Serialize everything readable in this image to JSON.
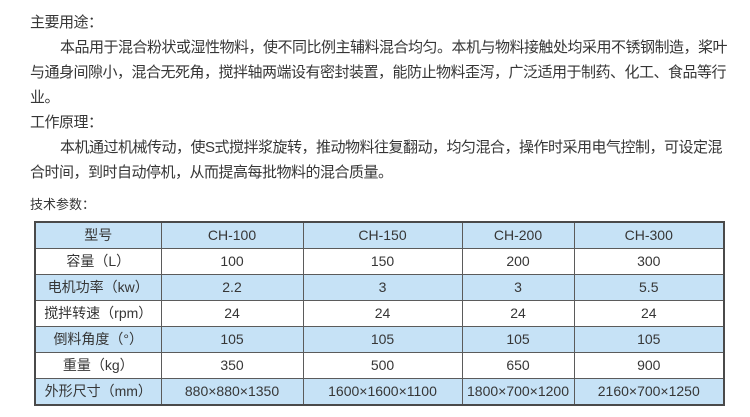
{
  "page": {
    "background": "#ffffff",
    "text_color": "#363636"
  },
  "sections": [
    {
      "heading": "主要用途：",
      "body": "本品用于混合粉状或湿性物料，使不同比例主辅料混合均匀。本机与物料接触处均采用不锈钢制造，桨叶与通身间隙小，混合无死角，搅拌轴两端设有密封装置，能防止物料歪泻，广泛适用于制药、化工、食品等行业。"
    },
    {
      "heading": "工作原理：",
      "body": "本机通过机械传动，使S式搅拌浆旋转，推动物料往复翻动，均匀混合，操作时采用电气控制，可设定混合时间，到时自动停机，从而提高每批物料的混合质量。"
    }
  ],
  "specs_label": "技术参数：",
  "table": {
    "colors": {
      "row_blue": "#c6e2f6",
      "row_white": "#ffffff",
      "border_inner": "#5b5b5b",
      "border_outer": "#4a4a4a"
    },
    "header": [
      "型号",
      "CH-100",
      "CH-150",
      "CH-200",
      "CH-300"
    ],
    "rows": [
      [
        "容量（L）",
        "100",
        "150",
        "200",
        "300"
      ],
      [
        "电机功率（kw）",
        "2.2",
        "3",
        "3",
        "5.5"
      ],
      [
        "搅拌转速（rpm）",
        "24",
        "24",
        "24",
        "24"
      ],
      [
        "倒料角度（°）",
        "105",
        "105",
        "105",
        "105"
      ],
      [
        "重量（kg）",
        "350",
        "500",
        "650",
        "900"
      ],
      [
        "外形尺寸（mm）",
        "880×880×1350",
        "1600×1600×1100",
        "1800×700×1200",
        "2160×700×1250"
      ]
    ]
  }
}
